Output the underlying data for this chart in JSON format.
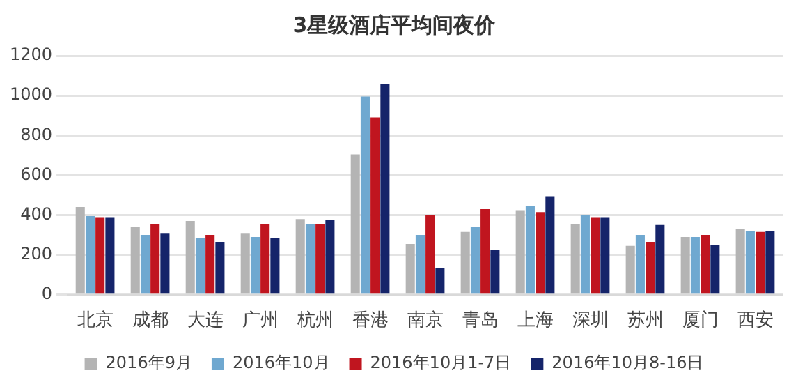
{
  "chart_data": {
    "type": "bar",
    "title": "3星级酒店平均间夜价",
    "categories": [
      "北京",
      "成都",
      "大连",
      "广州",
      "杭州",
      "香港",
      "南京",
      "青岛",
      "上海",
      "深圳",
      "苏州",
      "厦门",
      "西安"
    ],
    "series": [
      {
        "name": "2016年9月",
        "color": "#b4b4b4",
        "values": [
          440,
          340,
          370,
          310,
          380,
          705,
          255,
          315,
          425,
          355,
          245,
          290,
          330
        ]
      },
      {
        "name": "2016年10月",
        "color": "#6fa8d0",
        "values": [
          395,
          300,
          285,
          290,
          355,
          995,
          300,
          340,
          445,
          400,
          300,
          290,
          320
        ]
      },
      {
        "name": "2016年10月1-7日",
        "color": "#c0151f",
        "values": [
          390,
          355,
          300,
          355,
          355,
          890,
          400,
          430,
          415,
          390,
          265,
          300,
          315
        ]
      },
      {
        "name": "2016年10月8-16日",
        "color": "#15246a",
        "values": [
          390,
          310,
          265,
          285,
          375,
          1060,
          135,
          225,
          495,
          390,
          350,
          250,
          320
        ]
      }
    ],
    "ylim": [
      0,
      1200
    ],
    "yticks": [
      0,
      200,
      400,
      600,
      800,
      1000,
      1200
    ],
    "grid": "y",
    "legend": "bottom"
  }
}
